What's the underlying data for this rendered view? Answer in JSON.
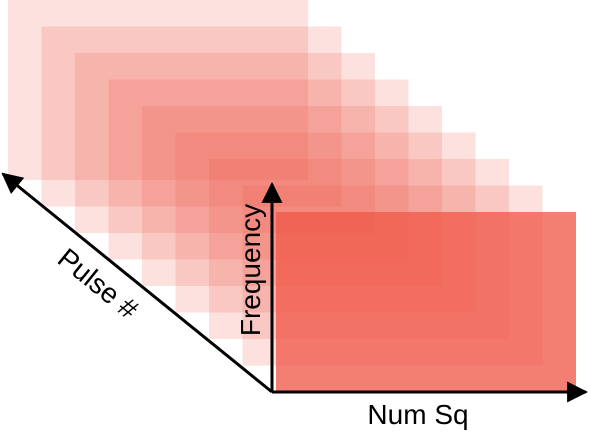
{
  "diagram": {
    "axes": {
      "x_label": "Num Sq",
      "y_label": "Frequency",
      "z_label": "Pulse #"
    },
    "layers": {
      "count": 9,
      "color": "#f05a4a",
      "back_opacity": 0.18,
      "front_opacity": 0.78
    },
    "axis_color": "#000000"
  }
}
